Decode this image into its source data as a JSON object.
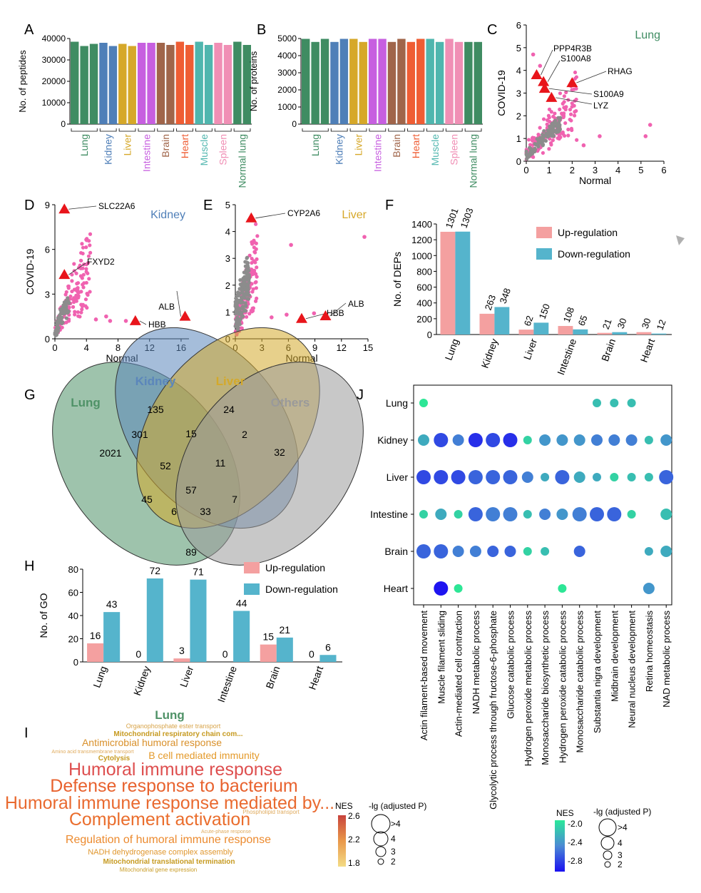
{
  "colors": {
    "up": "#f4a0a0",
    "down": "#55b4cc",
    "gray": "#8c8c8c",
    "pink": "#f062b0",
    "marker": "#e8151b",
    "tissue": {
      "Lung": "#3f8c62",
      "Kidney": "#4f7fb8",
      "Liver": "#d6a829",
      "Intestine": "#c75fe0",
      "Brain": "#a0654a",
      "Heart": "#ef5d34",
      "Muscle": "#4fb6ae",
      "Spleen": "#f08fb5",
      "Normal lung": "#3f8c62"
    },
    "venn": {
      "Lung": "#4f9267",
      "Kidney": "#5b86bb",
      "Liver": "#d4a92b",
      "Others": "#9a9a9a"
    },
    "bars": [
      "#3f8c62",
      "#4f7fb8",
      "#d6a829",
      "#c75fe0",
      "#a0654a",
      "#ef5d34",
      "#4fb6ae",
      "#f08fb5",
      "#3f8c62"
    ]
  },
  "panels": {
    "A": {
      "label": "A",
      "ylabel": "No. of peptides",
      "yticks": [
        "0",
        "10000",
        "20000",
        "30000",
        "40000"
      ],
      "groups": [
        "Lung",
        "Kidney",
        "Liver",
        "Intestine",
        "Brain",
        "Heart",
        "Muscle",
        "Spleen",
        "Normal lung"
      ]
    },
    "B": {
      "label": "B",
      "ylabel": "No. of proteins",
      "yticks": [
        "0",
        "1000",
        "2000",
        "3000",
        "4000",
        "5000"
      ],
      "groups": [
        "Lung",
        "Kidney",
        "Liver",
        "Intestine",
        "Brain",
        "Heart",
        "Muscle",
        "Spleen",
        "Normal lung"
      ]
    },
    "C": {
      "label": "C",
      "tissue": "Lung",
      "xlabel": "Normal",
      "ylabel": "COVID-19",
      "xticks": [
        "0",
        "1",
        "2",
        "3",
        "4",
        "5",
        "6"
      ],
      "yticks": [
        "0",
        "1",
        "2",
        "3",
        "4",
        "5",
        "6"
      ],
      "genes": [
        "PPP4R3B",
        "S100A8",
        "RHAG",
        "S100A9",
        "LYZ"
      ]
    },
    "D": {
      "label": "D",
      "tissue": "Kidney",
      "xlabel": "Normal",
      "ylabel": "COVID-19",
      "xticks": [
        "0",
        "4",
        "8",
        "12",
        "16"
      ],
      "yticks": [
        "0",
        "3",
        "6",
        "9"
      ],
      "genes": [
        "SLC22A6",
        "FXYD2",
        "HBB",
        "ALB"
      ]
    },
    "E": {
      "label": "E",
      "tissue": "Liver",
      "xlabel": "Normal",
      "xticks": [
        "0",
        "3",
        "6",
        "9",
        "12",
        "15"
      ],
      "yticks": [
        "0",
        "1",
        "2",
        "3",
        "4",
        "5"
      ],
      "genes": [
        "CYP2A6",
        "HBB",
        "ALB"
      ]
    },
    "F": {
      "label": "F",
      "ylabel": "No. of DEPs",
      "yticks": [
        "0",
        "200",
        "400",
        "600",
        "800",
        "1000",
        "1200",
        "1400"
      ],
      "legend": [
        "Up-regulation",
        "Down-regulation"
      ]
    },
    "G": {
      "label": "G",
      "sets": [
        "Lung",
        "Kidney",
        "Liver",
        "Others"
      ],
      "counts": [
        "135",
        "24",
        "301",
        "15",
        "2",
        "2021",
        "52",
        "11",
        "32",
        "45",
        "57",
        "7",
        "6",
        "33",
        "89"
      ]
    },
    "H": {
      "label": "H",
      "ylabel": "No. of GO",
      "yticks": [
        "0",
        "20",
        "40",
        "60",
        "80"
      ],
      "legend": [
        "Up-regulation",
        "Down-regulation"
      ]
    },
    "I": {
      "label": "I",
      "title": "Lung",
      "nes_title": "NES",
      "nes_ticks": [
        "2.6",
        "2.2",
        "1.8"
      ],
      "size_title": "-lg (adjusted P)",
      "size_ticks": [
        ">4",
        "4",
        "3",
        "2"
      ],
      "words": [
        "Organophosphate ester transport",
        "Mitochondrial respiratory chain com...",
        "Antimicrobial humoral response",
        "Amino acid transmembrane transport",
        "Cytolysis",
        "B cell mediated immunity",
        "Humoral immune response",
        "Defense response to bacterium",
        "Humoral immune response mediated by...",
        "Phospholipid transport",
        "Complement activation",
        "Acute-phase response",
        "Regulation of humoral immune response",
        "NADH dehydrogenase complex assembly",
        "Mitochondrial translational termination",
        "Mitochondrial gene expression"
      ]
    },
    "J": {
      "label": "J",
      "rows": [
        "Lung",
        "Kidney",
        "Liver",
        "Intestine",
        "Brain",
        "Heart"
      ],
      "cols": [
        "Actin filament-based movement",
        "Muscle filament sliding",
        "Actin-mediated cell contraction",
        "NADH metabolic process",
        "Glycolytic process through fructose-6-phosphate",
        "Glucose catabolic process",
        "Hydrogen peroxide metabolic process",
        "Monosaccharide biosynthetic process",
        "Hydrogen peroxide catabolic process",
        "Monosaccharide catabolic process",
        "Substantia nigra development",
        "Midbrain development",
        "Neural nucleus development",
        "Retina homeostasis",
        "NAD metabolic process"
      ],
      "nes_title": "NES",
      "nes_ticks": [
        "-2.0",
        "-2.4",
        "-2.8"
      ],
      "size_title": "-lg (adjusted P)",
      "size_ticks": [
        ">4",
        "4",
        "3",
        "2"
      ]
    }
  },
  "chart_data": [
    {
      "panel": "A",
      "type": "bar",
      "categories": [
        "Lung",
        "Lung",
        "Lung",
        "Kidney",
        "Kidney",
        "Liver",
        "Liver",
        "Intestine",
        "Intestine",
        "Brain",
        "Brain",
        "Heart",
        "Heart",
        "Muscle",
        "Muscle",
        "Spleen",
        "Spleen",
        "Normal lung",
        "Normal lung"
      ],
      "values": [
        38500,
        36500,
        37500,
        38000,
        36500,
        37500,
        36500,
        38000,
        38000,
        38000,
        37000,
        38500,
        37000,
        38500,
        37000,
        38000,
        37000,
        38500,
        37000
      ],
      "ylabel": "No. of peptides",
      "ylim": [
        0,
        40000
      ]
    },
    {
      "panel": "B",
      "type": "bar",
      "categories": [
        "Lung",
        "Lung",
        "Lung",
        "Kidney",
        "Kidney",
        "Liver",
        "Liver",
        "Intestine",
        "Intestine",
        "Brain",
        "Brain",
        "Heart",
        "Heart",
        "Muscle",
        "Muscle",
        "Spleen",
        "Spleen",
        "Normal lung",
        "Normal lung"
      ],
      "values": [
        4980,
        4800,
        4980,
        4800,
        4980,
        4980,
        4800,
        4980,
        4980,
        4800,
        4980,
        4800,
        4980,
        4980,
        4800,
        4980,
        4800,
        4800,
        4800
      ],
      "ylabel": "No. of proteins",
      "ylim": [
        0,
        5000
      ]
    },
    {
      "panel": "C",
      "type": "scatter",
      "title": "Lung",
      "xlabel": "Normal",
      "ylabel": "COVID-19",
      "xlim": [
        0,
        6
      ],
      "ylim": [
        0,
        6
      ],
      "highlighted": [
        {
          "label": "PPP4R3B",
          "x": 0.45,
          "y": 3.8
        },
        {
          "label": "S100A8",
          "x": 0.75,
          "y": 3.5
        },
        {
          "label": "RHAG",
          "x": 2.0,
          "y": 3.45
        },
        {
          "label": "S100A9",
          "x": 0.8,
          "y": 3.2
        },
        {
          "label": "LYZ",
          "x": 1.1,
          "y": 2.8
        }
      ],
      "outliers": [
        {
          "x": 5.4,
          "y": 1.6
        },
        {
          "x": 5.2,
          "y": 1.1
        },
        {
          "x": 3.2,
          "y": 1.1
        },
        {
          "x": 2.5,
          "y": 0.7
        },
        {
          "x": 0.3,
          "y": 4.7
        },
        {
          "x": 0.6,
          "y": 4.2
        }
      ]
    },
    {
      "panel": "D",
      "type": "scatter",
      "title": "Kidney",
      "xlabel": "Normal",
      "ylabel": "COVID-19",
      "xlim": [
        0,
        17
      ],
      "ylim": [
        0,
        9
      ],
      "highlighted": [
        {
          "label": "SLC22A6",
          "x": 1.2,
          "y": 8.7
        },
        {
          "label": "FXYD2",
          "x": 1.2,
          "y": 4.3
        },
        {
          "label": "HBB",
          "x": 10.2,
          "y": 1.2
        },
        {
          "label": "ALB",
          "x": 16.5,
          "y": 1.5
        }
      ],
      "outliers": [
        {
          "x": 6.5,
          "y": 1.5
        },
        {
          "x": 7.0,
          "y": 1.2
        },
        {
          "x": 9.0,
          "y": 1.2
        },
        {
          "x": 5.2,
          "y": 1.3
        }
      ]
    },
    {
      "panel": "E",
      "type": "scatter",
      "title": "Liver",
      "xlabel": "Normal",
      "xlim": [
        0,
        15
      ],
      "ylim": [
        0,
        5
      ],
      "highlighted": [
        {
          "label": "CYP2A6",
          "x": 1.8,
          "y": 4.5
        },
        {
          "label": "HBB",
          "x": 7.5,
          "y": 0.75
        },
        {
          "label": "ALB",
          "x": 10.2,
          "y": 0.85
        }
      ],
      "outliers": [
        {
          "x": 14.6,
          "y": 3.8
        },
        {
          "x": 6.3,
          "y": 3.5
        },
        {
          "x": 8.9,
          "y": 0.95
        },
        {
          "x": 5.8,
          "y": 0.9
        },
        {
          "x": 4.1,
          "y": 0.8
        }
      ]
    },
    {
      "panel": "F",
      "type": "bar",
      "ylabel": "No. of DEPs",
      "ylim": [
        0,
        1400
      ],
      "categories": [
        "Lung",
        "Kidney",
        "Liver",
        "Intestine",
        "Brain",
        "Heart"
      ],
      "series": [
        {
          "name": "Up-regulation",
          "values": [
            1301,
            263,
            62,
            108,
            21,
            30
          ]
        },
        {
          "name": "Down-regulation",
          "values": [
            1303,
            348,
            150,
            65,
            30,
            12
          ]
        }
      ]
    },
    {
      "panel": "H",
      "type": "bar",
      "ylabel": "No. of GO",
      "ylim": [
        0,
        80
      ],
      "categories": [
        "Lung",
        "Kidney",
        "Liver",
        "Intestine",
        "Brain",
        "Heart"
      ],
      "series": [
        {
          "name": "Up-regulation",
          "values": [
            16,
            0,
            3,
            0,
            15,
            0
          ]
        },
        {
          "name": "Down-regulation",
          "values": [
            43,
            72,
            71,
            44,
            21,
            6
          ]
        }
      ]
    },
    {
      "panel": "J",
      "type": "heatmap",
      "rows": [
        "Lung",
        "Kidney",
        "Liver",
        "Intestine",
        "Brain",
        "Heart"
      ],
      "columns": [
        "Actin filament-based movement",
        "Muscle filament sliding",
        "Actin-mediated cell contraction",
        "NADH metabolic process",
        "Glycolytic process through fructose-6-phosphate",
        "Glucose catabolic process",
        "Hydrogen peroxide metabolic process",
        "Monosaccharide biosynthetic process",
        "Hydrogen peroxide catabolic process",
        "Monosaccharide catabolic process",
        "Substantia nigra development",
        "Midbrain development",
        "Neural nucleus development",
        "Retina homeostasis",
        "NAD metabolic process"
      ],
      "points": [
        {
          "row": "Lung",
          "col": 0,
          "nes": -2.0,
          "size": 2
        },
        {
          "row": "Lung",
          "col": 10,
          "nes": -2.2,
          "size": 2
        },
        {
          "row": "Lung",
          "col": 11,
          "nes": -2.2,
          "size": 2
        },
        {
          "row": "Lung",
          "col": 12,
          "nes": -2.2,
          "size": 2
        },
        {
          "row": "Kidney",
          "col": 0,
          "nes": -2.3,
          "size": 3
        },
        {
          "row": "Kidney",
          "col": 1,
          "nes": -2.7,
          "size": 4
        },
        {
          "row": "Kidney",
          "col": 2,
          "nes": -2.5,
          "size": 3
        },
        {
          "row": "Kidney",
          "col": 3,
          "nes": -2.8,
          "size": 4
        },
        {
          "row": "Kidney",
          "col": 4,
          "nes": -2.7,
          "size": 4
        },
        {
          "row": "Kidney",
          "col": 5,
          "nes": -2.8,
          "size": 4
        },
        {
          "row": "Kidney",
          "col": 6,
          "nes": -2.1,
          "size": 2
        },
        {
          "row": "Kidney",
          "col": 7,
          "nes": -2.4,
          "size": 3
        },
        {
          "row": "Kidney",
          "col": 8,
          "nes": -2.4,
          "size": 3
        },
        {
          "row": "Kidney",
          "col": 9,
          "nes": -2.4,
          "size": 3
        },
        {
          "row": "Kidney",
          "col": 10,
          "nes": -2.5,
          "size": 3
        },
        {
          "row": "Kidney",
          "col": 11,
          "nes": -2.5,
          "size": 3
        },
        {
          "row": "Kidney",
          "col": 12,
          "nes": -2.5,
          "size": 3
        },
        {
          "row": "Kidney",
          "col": 13,
          "nes": -2.2,
          "size": 2
        },
        {
          "row": "Kidney",
          "col": 14,
          "nes": -2.4,
          "size": 3
        },
        {
          "row": "Liver",
          "col": 0,
          "nes": -2.7,
          "size": 4
        },
        {
          "row": "Liver",
          "col": 1,
          "nes": -2.7,
          "size": 4
        },
        {
          "row": "Liver",
          "col": 2,
          "nes": -2.7,
          "size": 4
        },
        {
          "row": "Liver",
          "col": 3,
          "nes": -2.6,
          "size": 4
        },
        {
          "row": "Liver",
          "col": 4,
          "nes": -2.6,
          "size": 4
        },
        {
          "row": "Liver",
          "col": 5,
          "nes": -2.6,
          "size": 4
        },
        {
          "row": "Liver",
          "col": 6,
          "nes": -2.5,
          "size": 3
        },
        {
          "row": "Liver",
          "col": 7,
          "nes": -2.3,
          "size": 2
        },
        {
          "row": "Liver",
          "col": 8,
          "nes": -2.6,
          "size": 4
        },
        {
          "row": "Liver",
          "col": 9,
          "nes": -2.3,
          "size": 3
        },
        {
          "row": "Liver",
          "col": 10,
          "nes": -2.3,
          "size": 2
        },
        {
          "row": "Liver",
          "col": 11,
          "nes": -2.1,
          "size": 2
        },
        {
          "row": "Liver",
          "col": 12,
          "nes": -2.2,
          "size": 2
        },
        {
          "row": "Liver",
          "col": 13,
          "nes": -2.2,
          "size": 2
        },
        {
          "row": "Liver",
          "col": 14,
          "nes": -2.6,
          "size": 4
        },
        {
          "row": "Intestine",
          "col": 0,
          "nes": -2.1,
          "size": 2
        },
        {
          "row": "Intestine",
          "col": 1,
          "nes": -2.3,
          "size": 3
        },
        {
          "row": "Intestine",
          "col": 2,
          "nes": -2.1,
          "size": 2
        },
        {
          "row": "Intestine",
          "col": 3,
          "nes": -2.6,
          "size": 4
        },
        {
          "row": "Intestine",
          "col": 4,
          "nes": -2.5,
          "size": 4
        },
        {
          "row": "Intestine",
          "col": 5,
          "nes": -2.5,
          "size": 4
        },
        {
          "row": "Intestine",
          "col": 6,
          "nes": -2.2,
          "size": 2
        },
        {
          "row": "Intestine",
          "col": 7,
          "nes": -2.5,
          "size": 3
        },
        {
          "row": "Intestine",
          "col": 8,
          "nes": -2.4,
          "size": 3
        },
        {
          "row": "Intestine",
          "col": 9,
          "nes": -2.5,
          "size": 4
        },
        {
          "row": "Intestine",
          "col": 10,
          "nes": -2.6,
          "size": 4
        },
        {
          "row": "Intestine",
          "col": 11,
          "nes": -2.6,
          "size": 4
        },
        {
          "row": "Intestine",
          "col": 12,
          "nes": -2.1,
          "size": 2
        },
        {
          "row": "Intestine",
          "col": 14,
          "nes": -2.2,
          "size": 3
        },
        {
          "row": "Brain",
          "col": 0,
          "nes": -2.6,
          "size": 4
        },
        {
          "row": "Brain",
          "col": 1,
          "nes": -2.6,
          "size": 4
        },
        {
          "row": "Brain",
          "col": 2,
          "nes": -2.5,
          "size": 3
        },
        {
          "row": "Brain",
          "col": 3,
          "nes": -2.5,
          "size": 3
        },
        {
          "row": "Brain",
          "col": 4,
          "nes": -2.6,
          "size": 3
        },
        {
          "row": "Brain",
          "col": 5,
          "nes": -2.6,
          "size": 3
        },
        {
          "row": "Brain",
          "col": 6,
          "nes": -2.1,
          "size": 2
        },
        {
          "row": "Brain",
          "col": 7,
          "nes": -2.2,
          "size": 2
        },
        {
          "row": "Brain",
          "col": 9,
          "nes": -2.6,
          "size": 3
        },
        {
          "row": "Brain",
          "col": 13,
          "nes": -2.3,
          "size": 2
        },
        {
          "row": "Brain",
          "col": 14,
          "nes": -2.3,
          "size": 3
        },
        {
          "row": "Heart",
          "col": 1,
          "nes": -2.9,
          "size": 4
        },
        {
          "row": "Heart",
          "col": 2,
          "nes": -2.0,
          "size": 2
        },
        {
          "row": "Heart",
          "col": 8,
          "nes": -2.0,
          "size": 2
        },
        {
          "row": "Heart",
          "col": 13,
          "nes": -2.4,
          "size": 3
        }
      ]
    }
  ]
}
